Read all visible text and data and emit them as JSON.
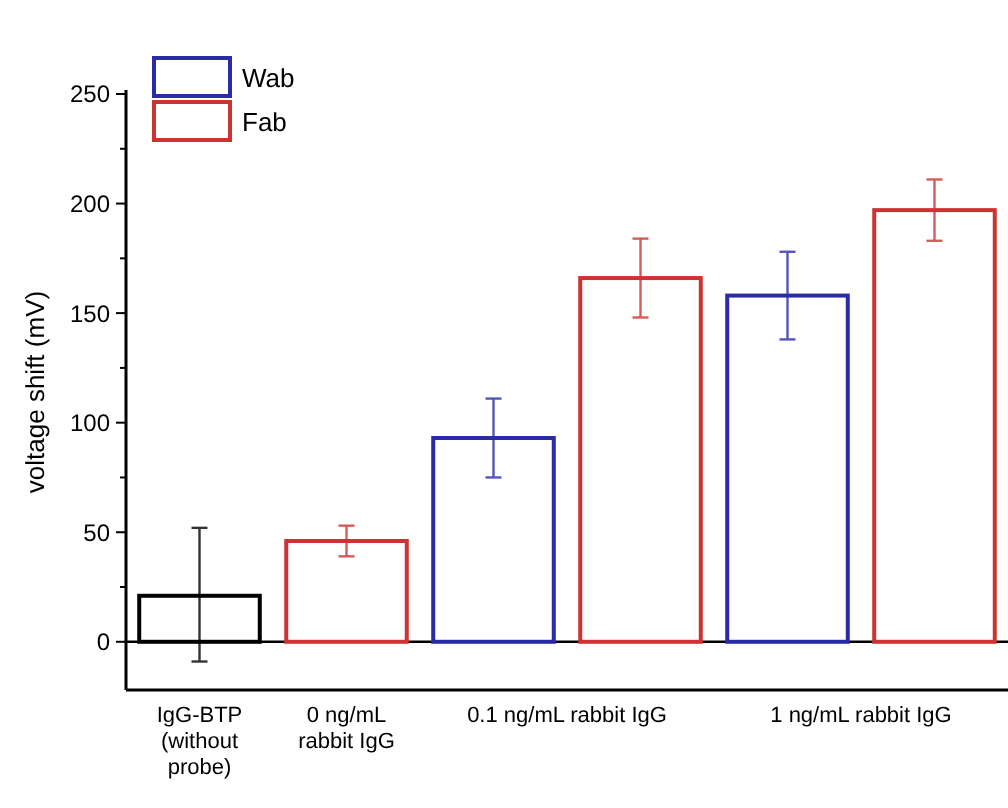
{
  "chart_data": {
    "type": "bar",
    "ylabel": "voltage shift (mV)",
    "categories": [
      "IgG-BTP (without probe)",
      "0 ng/mL rabbit IgG",
      "0.1 ng/mL rabbit IgG",
      "1 ng/mL rabbit IgG"
    ],
    "series": [
      {
        "color": "#000000",
        "values": [
          21,
          null,
          null,
          null
        ],
        "errors": [
          [
            -9,
            52
          ],
          null,
          null,
          null
        ]
      },
      {
        "name": "Wab",
        "color": "#2b2ba8",
        "values": [
          null,
          null,
          93,
          158
        ],
        "errors": [
          null,
          null,
          [
            75,
            111
          ],
          [
            138,
            178
          ]
        ]
      },
      {
        "name": "Fab",
        "color": "#cc3333",
        "values": [
          null,
          46,
          166,
          197
        ],
        "errors": [
          null,
          [
            39,
            53
          ],
          [
            148,
            184
          ],
          [
            183,
            211
          ]
        ]
      }
    ],
    "ylim": [
      -22,
      250
    ],
    "yticks": [
      0,
      {
        "value": 25,
        "label": null
      },
      50,
      {
        "value": 75,
        "label": null
      },
      100,
      {
        "value": 125,
        "label": null
      },
      150,
      {
        "value": 175,
        "label": null
      },
      200,
      {
        "value": 225,
        "label": null
      },
      250
    ],
    "ref_lines": [
      {
        "axis": "y",
        "value": 0,
        "color": "#000000"
      }
    ],
    "legend": "top left",
    "grid": false
  }
}
